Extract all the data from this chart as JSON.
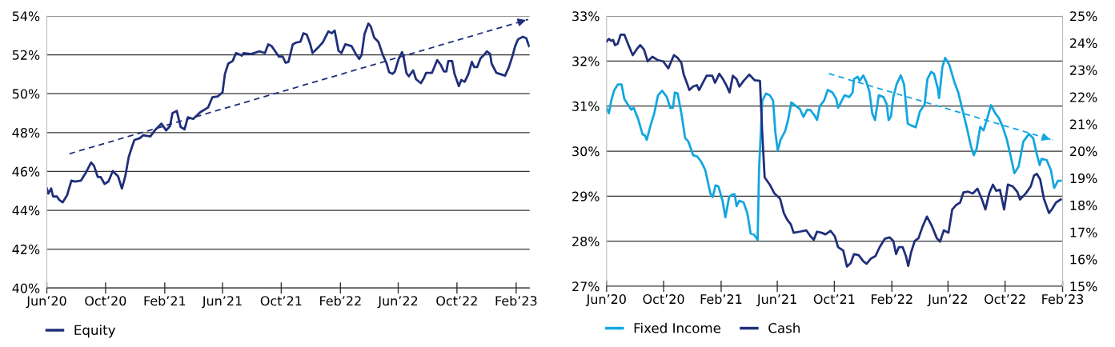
{
  "chart_data": [
    {
      "type": "line",
      "legend": "bottom left",
      "grid": "y",
      "line_style": "solid",
      "marker": "none",
      "xlim": [
        "2020-06-01",
        "2023-03-01"
      ],
      "xticks": [
        {
          "value": "2020-06-01",
          "label": "Jun’20"
        },
        {
          "value": "2020-10-01",
          "label": "Oct’20"
        },
        {
          "value": "2021-02-01",
          "label": "Feb’21"
        },
        {
          "value": "2021-06-01",
          "label": "Jun’21"
        },
        {
          "value": "2021-10-01",
          "label": "Oct’21"
        },
        {
          "value": "2022-02-01",
          "label": "Feb’22"
        },
        {
          "value": "2022-06-01",
          "label": "Jun’22"
        },
        {
          "value": "2022-10-01",
          "label": "Oct’22"
        },
        {
          "value": "2023-02-01",
          "label": "Feb’23"
        }
      ],
      "ylim": [
        40,
        54
      ],
      "yticks": [
        {
          "value": 40,
          "label": "40%"
        },
        {
          "value": 42,
          "label": "42%"
        },
        {
          "value": 44,
          "label": "44%"
        },
        {
          "value": 46,
          "label": "46%"
        },
        {
          "value": 48,
          "label": "48%"
        },
        {
          "value": 50,
          "label": "50%"
        },
        {
          "value": 52,
          "label": "52%"
        },
        {
          "value": 54,
          "label": "54%"
        }
      ],
      "series": [
        {
          "name": "Equity",
          "color": "#1f2f7a",
          "x": [
            "2020-06-01",
            "2020-06-04",
            "2020-06-10",
            "2020-06-14",
            "2020-06-22",
            "2020-06-27",
            "2020-07-04",
            "2020-07-13",
            "2020-07-22",
            "2020-07-30",
            "2020-08-11",
            "2020-08-21",
            "2020-09-01",
            "2020-09-07",
            "2020-09-15",
            "2020-09-21",
            "2020-09-29",
            "2020-10-07",
            "2020-10-16",
            "2020-10-27",
            "2020-11-04",
            "2020-11-11",
            "2020-11-18",
            "2020-11-25",
            "2020-11-30",
            "2020-12-11",
            "2020-12-18",
            "2021-01-02",
            "2021-01-13",
            "2021-01-25",
            "2021-02-04",
            "2021-02-12",
            "2021-02-17",
            "2021-02-26",
            "2021-03-06",
            "2021-03-14",
            "2021-03-21",
            "2021-04-01",
            "2021-04-16",
            "2021-05-02",
            "2021-05-11",
            "2021-05-22",
            "2021-06-01",
            "2021-06-06",
            "2021-06-13",
            "2021-06-22",
            "2021-06-29",
            "2021-07-08",
            "2021-07-11",
            "2021-07-15",
            "2021-07-30",
            "2021-08-17",
            "2021-08-28",
            "2021-09-04",
            "2021-09-11",
            "2021-09-26",
            "2021-10-04",
            "2021-10-10",
            "2021-10-16",
            "2021-10-25",
            "2021-11-01",
            "2021-11-10",
            "2021-11-16",
            "2021-11-23",
            "2021-11-30",
            "2021-12-05",
            "2021-12-16",
            "2021-12-26",
            "2022-01-07",
            "2022-01-14",
            "2022-01-20",
            "2022-01-28",
            "2022-02-03",
            "2022-02-11",
            "2022-02-24",
            "2022-03-06",
            "2022-03-12",
            "2022-03-17",
            "2022-03-23",
            "2022-03-31",
            "2022-04-05",
            "2022-04-12",
            "2022-04-21",
            "2022-04-30",
            "2022-05-08",
            "2022-05-13",
            "2022-05-20",
            "2022-05-25",
            "2022-06-02",
            "2022-06-09",
            "2022-06-12",
            "2022-06-18",
            "2022-06-23",
            "2022-07-02",
            "2022-07-08",
            "2022-07-18",
            "2022-07-24",
            "2022-07-29",
            "2022-08-10",
            "2022-08-21",
            "2022-08-28",
            "2022-09-04",
            "2022-09-09",
            "2022-09-13",
            "2022-09-21",
            "2022-09-26",
            "2022-10-05",
            "2022-10-10",
            "2022-10-17",
            "2022-10-25",
            "2022-11-01",
            "2022-11-06",
            "2022-11-12",
            "2022-11-19",
            "2022-11-28",
            "2022-12-02",
            "2022-12-09",
            "2022-12-12",
            "2022-12-22",
            "2023-01-09",
            "2023-01-17",
            "2023-01-24",
            "2023-01-30",
            "2023-02-05",
            "2023-02-15",
            "2023-02-22",
            "2023-02-26",
            "2023-02-28"
          ],
          "values": [
            45.12,
            44.86,
            45.12,
            44.71,
            44.71,
            44.53,
            44.41,
            44.77,
            45.53,
            45.48,
            45.53,
            45.93,
            46.46,
            46.29,
            45.71,
            45.71,
            45.36,
            45.48,
            46.02,
            45.75,
            45.12,
            45.75,
            46.73,
            47.27,
            47.62,
            47.71,
            47.86,
            47.8,
            48.16,
            48.46,
            48.11,
            48.34,
            49.0,
            49.11,
            48.29,
            48.16,
            48.79,
            48.7,
            49.05,
            49.29,
            49.82,
            49.86,
            50.07,
            51.02,
            51.55,
            51.68,
            52.09,
            52.0,
            51.96,
            52.09,
            52.04,
            52.18,
            52.09,
            52.54,
            52.45,
            51.91,
            51.91,
            51.59,
            51.64,
            52.54,
            52.63,
            52.68,
            53.11,
            53.04,
            52.57,
            52.09,
            52.36,
            52.63,
            53.21,
            53.11,
            53.25,
            52.21,
            52.09,
            52.54,
            52.45,
            52.0,
            51.79,
            52.0,
            53.07,
            53.61,
            53.46,
            52.89,
            52.66,
            52.0,
            51.55,
            51.11,
            51.02,
            51.14,
            51.79,
            52.14,
            51.91,
            51.07,
            50.89,
            51.2,
            50.75,
            50.54,
            50.79,
            51.07,
            51.07,
            51.73,
            51.5,
            51.14,
            51.14,
            51.68,
            51.68,
            51.02,
            50.39,
            50.71,
            50.61,
            51.02,
            51.64,
            51.37,
            51.37,
            51.82,
            52.04,
            52.18,
            52.04,
            51.55,
            51.07,
            50.93,
            51.37,
            51.91,
            52.45,
            52.8,
            52.93,
            52.86,
            52.57,
            52.45
          ]
        },
        {
          "type": "line",
          "line_style": "dashed",
          "color": "#1f2f7a",
          "x": [
            "2020-07-18",
            "2023-02-26"
          ],
          "values": [
            46.91,
            53.82
          ]
        }
      ]
    },
    {
      "type": "line",
      "legend": "bottom left",
      "grid": "y",
      "line_style": "solid",
      "marker": "none",
      "xlim": [
        "2020-06-01",
        "2023-02-01"
      ],
      "xticks": [
        {
          "value": "2020-06-01",
          "label": "Jun’20"
        },
        {
          "value": "2020-10-01",
          "label": "Oct’20"
        },
        {
          "value": "2021-02-01",
          "label": "Feb’21"
        },
        {
          "value": "2021-06-01",
          "label": "Jun’21"
        },
        {
          "value": "2021-10-01",
          "label": "Oct’21"
        },
        {
          "value": "2022-02-01",
          "label": "Feb’22"
        },
        {
          "value": "2022-06-01",
          "label": "Jun’22"
        },
        {
          "value": "2022-10-01",
          "label": "Oct’22"
        },
        {
          "value": "2023-02-01",
          "label": "Feb’23"
        }
      ],
      "ylim": [
        27,
        33
      ],
      "yticks": [
        {
          "value": 27,
          "label": "27%"
        },
        {
          "value": 28,
          "label": "28%"
        },
        {
          "value": 29,
          "label": "29%"
        },
        {
          "value": 30,
          "label": "30%"
        },
        {
          "value": 31,
          "label": "31%"
        },
        {
          "value": 32,
          "label": "32%"
        },
        {
          "value": 33,
          "label": "33%"
        }
      ],
      "y2lim": [
        15,
        25
      ],
      "y2ticks": [
        {
          "value": 15,
          "label": "15%"
        },
        {
          "value": 16,
          "label": "16%"
        },
        {
          "value": 17,
          "label": "17%"
        },
        {
          "value": 18,
          "label": "18%"
        },
        {
          "value": 19,
          "label": "19%"
        },
        {
          "value": 20,
          "label": "20%"
        },
        {
          "value": 21,
          "label": "21%"
        },
        {
          "value": 22,
          "label": "22%"
        },
        {
          "value": 23,
          "label": "23%"
        },
        {
          "value": 24,
          "label": "24%"
        },
        {
          "value": 25,
          "label": "25%"
        }
      ],
      "series": [
        {
          "name": "Fixed Income",
          "color": "#12a6e0",
          "x": [
            "2020-06-01",
            "2020-06-06",
            "2020-06-11",
            "2020-06-17",
            "2020-06-25",
            "2020-07-03",
            "2020-07-09",
            "2020-07-16",
            "2020-07-24",
            "2020-07-29",
            "2020-08-07",
            "2020-08-17",
            "2020-08-22",
            "2020-08-26",
            "2020-09-02",
            "2020-09-11",
            "2020-09-19",
            "2020-09-28",
            "2020-10-08",
            "2020-10-15",
            "2020-10-21",
            "2020-10-25",
            "2020-10-31",
            "2020-11-08",
            "2020-11-16",
            "2020-11-23",
            "2020-12-03",
            "2020-12-12",
            "2020-12-20",
            "2020-12-29",
            "2021-01-09",
            "2021-01-14",
            "2021-01-20",
            "2021-01-26",
            "2021-02-04",
            "2021-02-10",
            "2021-02-18",
            "2021-02-25",
            "2021-03-02",
            "2021-03-06",
            "2021-03-12",
            "2021-03-21",
            "2021-03-29",
            "2021-04-05",
            "2021-04-12",
            "2021-04-20",
            "2021-04-23",
            "2021-04-30",
            "2021-05-08",
            "2021-05-16",
            "2021-05-23",
            "2021-05-28",
            "2021-06-02",
            "2021-06-08",
            "2021-06-18",
            "2021-06-24",
            "2021-07-01",
            "2021-07-11",
            "2021-07-19",
            "2021-07-27",
            "2021-08-04",
            "2021-08-11",
            "2021-08-19",
            "2021-08-25",
            "2021-08-31",
            "2021-09-09",
            "2021-09-17",
            "2021-09-27",
            "2021-10-05",
            "2021-10-09",
            "2021-10-15",
            "2021-10-23",
            "2021-11-02",
            "2021-11-09",
            "2021-11-12",
            "2021-11-20",
            "2021-11-24",
            "2021-12-02",
            "2021-12-09",
            "2021-12-15",
            "2021-12-21",
            "2021-12-27",
            "2022-01-04",
            "2022-01-14",
            "2022-01-21",
            "2022-01-25",
            "2022-01-30",
            "2022-02-04",
            "2022-02-11",
            "2022-02-20",
            "2022-02-27",
            "2022-03-07",
            "2022-03-14",
            "2022-03-24",
            "2022-04-02",
            "2022-04-12",
            "2022-04-18",
            "2022-04-26",
            "2022-05-02",
            "2022-05-10",
            "2022-05-13",
            "2022-05-20",
            "2022-05-26",
            "2022-06-04",
            "2022-06-15",
            "2022-06-23",
            "2022-06-30",
            "2022-07-11",
            "2022-07-20",
            "2022-07-26",
            "2022-08-01",
            "2022-08-09",
            "2022-08-16",
            "2022-08-24",
            "2022-09-01",
            "2022-09-10",
            "2022-09-18",
            "2022-09-26",
            "2022-10-05",
            "2022-10-13",
            "2022-10-21",
            "2022-10-30",
            "2022-11-09",
            "2022-11-21",
            "2022-11-30",
            "2022-12-08",
            "2022-12-14",
            "2022-12-18",
            "2022-12-29",
            "2023-01-07",
            "2023-01-14",
            "2023-01-22",
            "2023-01-28"
          ],
          "values": [
            30.96,
            30.84,
            31.12,
            31.34,
            31.48,
            31.48,
            31.16,
            31.04,
            30.92,
            30.96,
            30.73,
            30.37,
            30.35,
            30.25,
            30.53,
            30.84,
            31.24,
            31.34,
            31.2,
            30.96,
            30.96,
            31.3,
            31.28,
            30.84,
            30.29,
            30.21,
            29.91,
            29.88,
            29.77,
            29.58,
            29.06,
            28.98,
            29.24,
            29.22,
            28.9,
            28.53,
            28.98,
            29.04,
            29.04,
            28.78,
            28.9,
            28.86,
            28.62,
            28.17,
            28.15,
            28.03,
            29.58,
            31.12,
            31.28,
            31.24,
            31.12,
            30.41,
            30.01,
            30.25,
            30.45,
            30.69,
            31.08,
            31.0,
            30.94,
            30.76,
            30.92,
            30.91,
            30.8,
            30.69,
            31.0,
            31.12,
            31.36,
            31.3,
            31.16,
            30.96,
            31.08,
            31.24,
            31.2,
            31.3,
            31.6,
            31.65,
            31.56,
            31.68,
            31.52,
            31.32,
            30.84,
            30.69,
            31.24,
            31.2,
            31.04,
            30.69,
            30.77,
            31.2,
            31.48,
            31.68,
            31.48,
            30.61,
            30.57,
            30.53,
            30.88,
            31.04,
            31.6,
            31.76,
            31.72,
            31.4,
            31.18,
            31.87,
            32.07,
            31.91,
            31.52,
            31.3,
            31.0,
            30.53,
            30.11,
            29.91,
            30.05,
            30.54,
            30.46,
            30.73,
            31.02,
            30.84,
            30.73,
            30.54,
            30.25,
            29.89,
            29.51,
            29.66,
            30.21,
            30.38,
            30.29,
            29.93,
            29.69,
            29.83,
            29.8,
            29.58,
            29.18,
            29.34,
            29.34
          ]
        },
        {
          "name": "Cash",
          "color": "#1f2f7a",
          "axis": "y2",
          "x": [
            "2020-06-01",
            "2020-06-06",
            "2020-06-11",
            "2020-06-15",
            "2020-06-19",
            "2020-06-25",
            "2020-07-01",
            "2020-07-09",
            "2020-07-18",
            "2020-07-27",
            "2020-08-05",
            "2020-08-12",
            "2020-08-20",
            "2020-08-28",
            "2020-09-07",
            "2020-09-19",
            "2020-09-30",
            "2020-10-11",
            "2020-10-23",
            "2020-10-31",
            "2020-11-08",
            "2020-11-13",
            "2020-11-21",
            "2020-11-25",
            "2020-12-03",
            "2020-12-11",
            "2020-12-16",
            "2020-12-24",
            "2021-01-01",
            "2021-01-13",
            "2021-01-19",
            "2021-01-28",
            "2021-02-05",
            "2021-02-12",
            "2021-02-19",
            "2021-02-26",
            "2021-03-06",
            "2021-03-12",
            "2021-03-21",
            "2021-04-02",
            "2021-04-14",
            "2021-04-25",
            "2021-04-30",
            "2021-05-05",
            "2021-05-16",
            "2021-05-26",
            "2021-06-07",
            "2021-06-15",
            "2021-06-22",
            "2021-06-30",
            "2021-07-06",
            "2021-07-19",
            "2021-08-02",
            "2021-08-11",
            "2021-08-18",
            "2021-08-25",
            "2021-09-04",
            "2021-09-12",
            "2021-09-23",
            "2021-10-02",
            "2021-10-09",
            "2021-10-20",
            "2021-10-28",
            "2021-11-05",
            "2021-11-12",
            "2021-11-22",
            "2021-12-02",
            "2021-12-09",
            "2021-12-18",
            "2021-12-28",
            "2022-01-06",
            "2022-01-17",
            "2022-01-27",
            "2022-02-04",
            "2022-02-10",
            "2022-02-16",
            "2022-02-24",
            "2022-03-03",
            "2022-03-08",
            "2022-03-14",
            "2022-03-22",
            "2022-03-30",
            "2022-04-07",
            "2022-04-17",
            "2022-04-27",
            "2022-05-08",
            "2022-05-15",
            "2022-05-23",
            "2022-06-02",
            "2022-06-10",
            "2022-06-18",
            "2022-06-27",
            "2022-07-04",
            "2022-07-14",
            "2022-07-24",
            "2022-08-03",
            "2022-08-12",
            "2022-08-20",
            "2022-08-28",
            "2022-09-05",
            "2022-09-12",
            "2022-09-20",
            "2022-09-29",
            "2022-10-07",
            "2022-10-17",
            "2022-10-27",
            "2022-11-02",
            "2022-11-14",
            "2022-11-25",
            "2022-12-02",
            "2022-12-08",
            "2022-12-15",
            "2022-12-23",
            "2023-01-03",
            "2023-01-10",
            "2023-01-18",
            "2023-01-28"
          ],
          "values": [
            24.05,
            24.15,
            24.08,
            24.11,
            23.92,
            23.98,
            24.31,
            24.31,
            23.92,
            23.55,
            23.78,
            23.92,
            23.76,
            23.32,
            23.49,
            23.36,
            23.32,
            23.06,
            23.55,
            23.45,
            23.26,
            22.83,
            22.46,
            22.26,
            22.39,
            22.44,
            22.26,
            22.53,
            22.79,
            22.79,
            22.53,
            22.86,
            22.66,
            22.44,
            22.17,
            22.79,
            22.66,
            22.39,
            22.6,
            22.83,
            22.62,
            22.6,
            20.61,
            19.03,
            18.76,
            18.43,
            18.24,
            17.71,
            17.47,
            17.29,
            16.98,
            17.02,
            17.07,
            16.85,
            16.72,
            17.02,
            16.98,
            16.92,
            17.05,
            16.85,
            16.45,
            16.32,
            15.73,
            15.86,
            16.19,
            16.15,
            15.92,
            15.83,
            16.02,
            16.12,
            16.45,
            16.76,
            16.81,
            16.68,
            16.19,
            16.45,
            16.45,
            16.12,
            15.75,
            16.25,
            16.68,
            16.78,
            17.18,
            17.58,
            17.25,
            16.78,
            16.65,
            17.07,
            16.98,
            17.84,
            18.0,
            18.1,
            18.47,
            18.5,
            18.43,
            18.61,
            18.24,
            17.84,
            18.43,
            18.76,
            18.53,
            18.57,
            17.84,
            18.76,
            18.7,
            18.5,
            18.21,
            18.43,
            18.7,
            19.1,
            19.16,
            18.96,
            18.24,
            17.71,
            17.87,
            18.1,
            18.21
          ]
        },
        {
          "type": "line",
          "line_style": "dashed",
          "color": "#12a6e0",
          "x": [
            "2021-09-19",
            "2023-01-10"
          ],
          "values": [
            31.72,
            30.25
          ]
        }
      ]
    }
  ]
}
